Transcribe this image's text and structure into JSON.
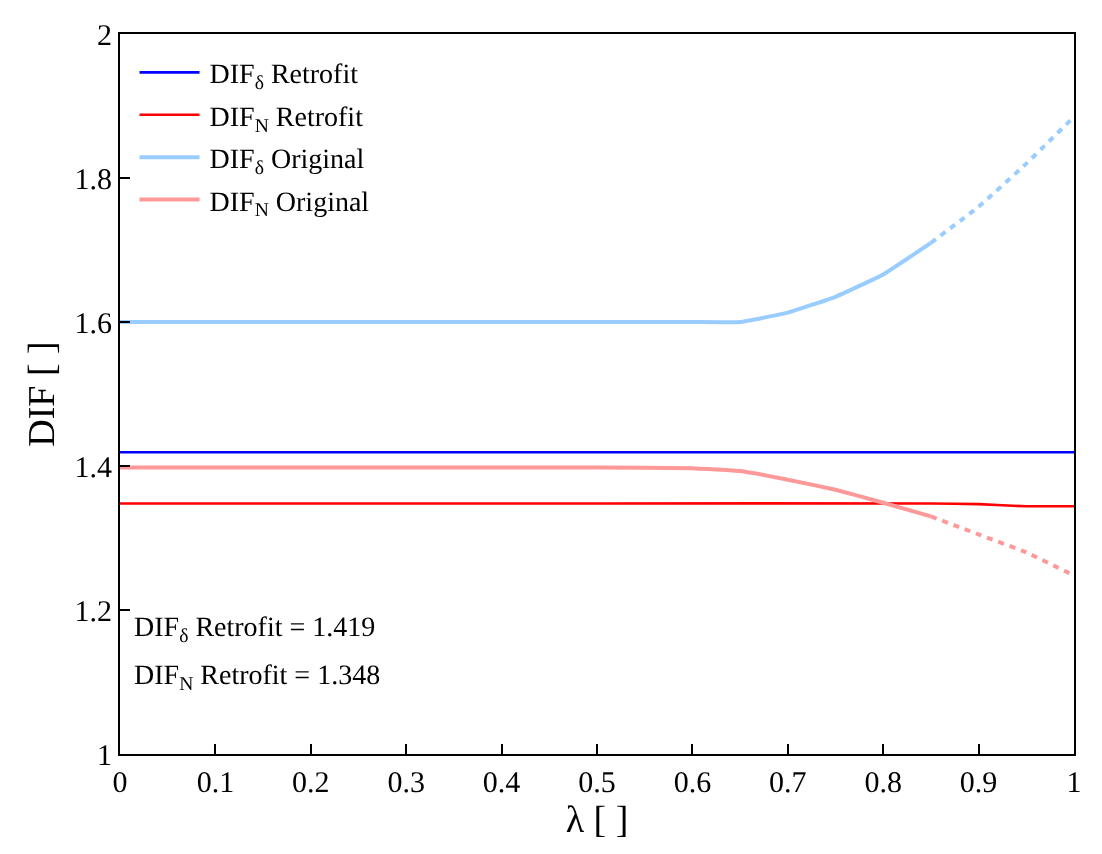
{
  "chart_data": {
    "type": "line",
    "xlabel": "λ [ ]",
    "ylabel": "DIF [ ]",
    "xlim": [
      0,
      1
    ],
    "ylim": [
      1,
      2
    ],
    "xticks": [
      0,
      0.1,
      0.2,
      0.3,
      0.4,
      0.5,
      0.6,
      0.7,
      0.8,
      0.9,
      1.0
    ],
    "yticks": [
      1,
      1.2,
      1.4,
      1.6,
      1.8,
      2
    ],
    "legend": "top left",
    "marker": "none",
    "annotations": [
      "DIF$_{δ}$ Retrofit = 1.419",
      "DIF$_{N}$ Retrofit = 1.348"
    ],
    "series": [
      {
        "name": "DIF$_{δ}$ Retrofit",
        "color": "#0000ff",
        "x": [
          0,
          0.5,
          1.0
        ],
        "values": [
          1.419,
          1.419,
          1.419
        ],
        "line_style": "solid"
      },
      {
        "name": "DIF$_{N}$ Retrofit",
        "color": "#ff0000",
        "x": [
          0,
          0.5,
          0.85,
          0.9,
          0.95,
          1.0
        ],
        "values": [
          1.348,
          1.348,
          1.348,
          1.347,
          1.344,
          1.344
        ],
        "line_style": "solid"
      },
      {
        "name": "DIF$_{δ}$ Original",
        "color": "#99ccff",
        "x": [
          0,
          0.1,
          0.2,
          0.3,
          0.4,
          0.5,
          0.6,
          0.65,
          0.7,
          0.75,
          0.8,
          0.85
        ],
        "values": [
          1.6,
          1.6,
          1.6,
          1.6,
          1.6,
          1.6,
          1.6,
          1.6,
          1.613,
          1.635,
          1.666,
          1.71
        ],
        "line_style": "solid"
      },
      {
        "name": "DIF$_{N}$ Original",
        "color": "#ff9999",
        "x": [
          0,
          0.1,
          0.2,
          0.3,
          0.4,
          0.5,
          0.6,
          0.65,
          0.7,
          0.75,
          0.8,
          0.85
        ],
        "values": [
          1.398,
          1.398,
          1.398,
          1.398,
          1.398,
          1.398,
          1.397,
          1.393,
          1.381,
          1.367,
          1.349,
          1.33
        ],
        "line_style": "solid"
      },
      {
        "color": "#99ccff",
        "x": [
          0.85,
          0.9,
          0.95,
          1.0
        ],
        "values": [
          1.71,
          1.76,
          1.82,
          1.885
        ],
        "line_style": "dotted"
      },
      {
        "color": "#ff9999",
        "x": [
          0.85,
          0.9,
          0.95,
          1.0
        ],
        "values": [
          1.33,
          1.305,
          1.28,
          1.248
        ],
        "line_style": "dotted"
      }
    ]
  }
}
